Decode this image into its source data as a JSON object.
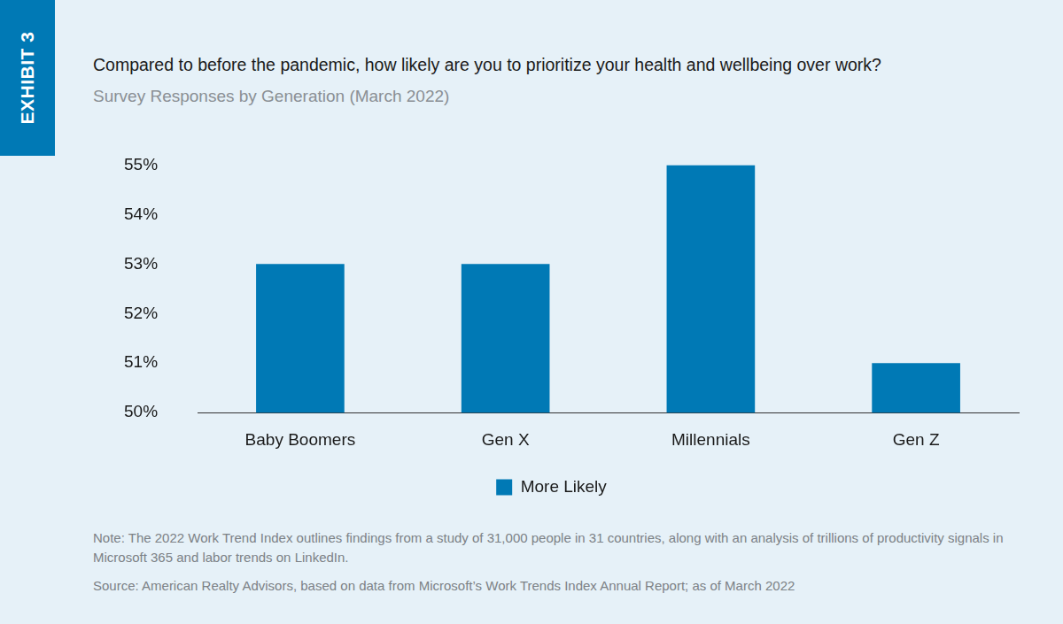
{
  "exhibit": "EXHIBIT 3",
  "note": "Note: The 2022 Work Trend Index outlines findings from a study of 31,000 people in 31 countries, along with an analysis of trillions of productivity signals in Microsoft 365 and labor trends on LinkedIn.",
  "source": "Source: American Realty Advisors, based on data from Microsoft’s Work Trends Index Annual Report; as of March 2022",
  "chart_data": {
    "type": "bar",
    "title": "Compared to before the pandemic, how likely are you to prioritize your health and wellbeing over work?",
    "subtitle": "Survey Responses by Generation (March 2022)",
    "categories": [
      "Baby Boomers",
      "Gen X",
      "Millennials",
      "Gen Z"
    ],
    "series": [
      {
        "name": "More Likely",
        "color": "#0079b5",
        "values": [
          53,
          53,
          55,
          51
        ]
      }
    ],
    "ylim": [
      50,
      55
    ],
    "yticks": [
      {
        "value": 50,
        "label": "50%"
      },
      {
        "value": 51,
        "label": "51%"
      },
      {
        "value": 52,
        "label": "52%"
      },
      {
        "value": 53,
        "label": "53%"
      },
      {
        "value": 54,
        "label": "54%"
      },
      {
        "value": 55,
        "label": "55%"
      }
    ],
    "grid": false,
    "legend": "bottom"
  }
}
